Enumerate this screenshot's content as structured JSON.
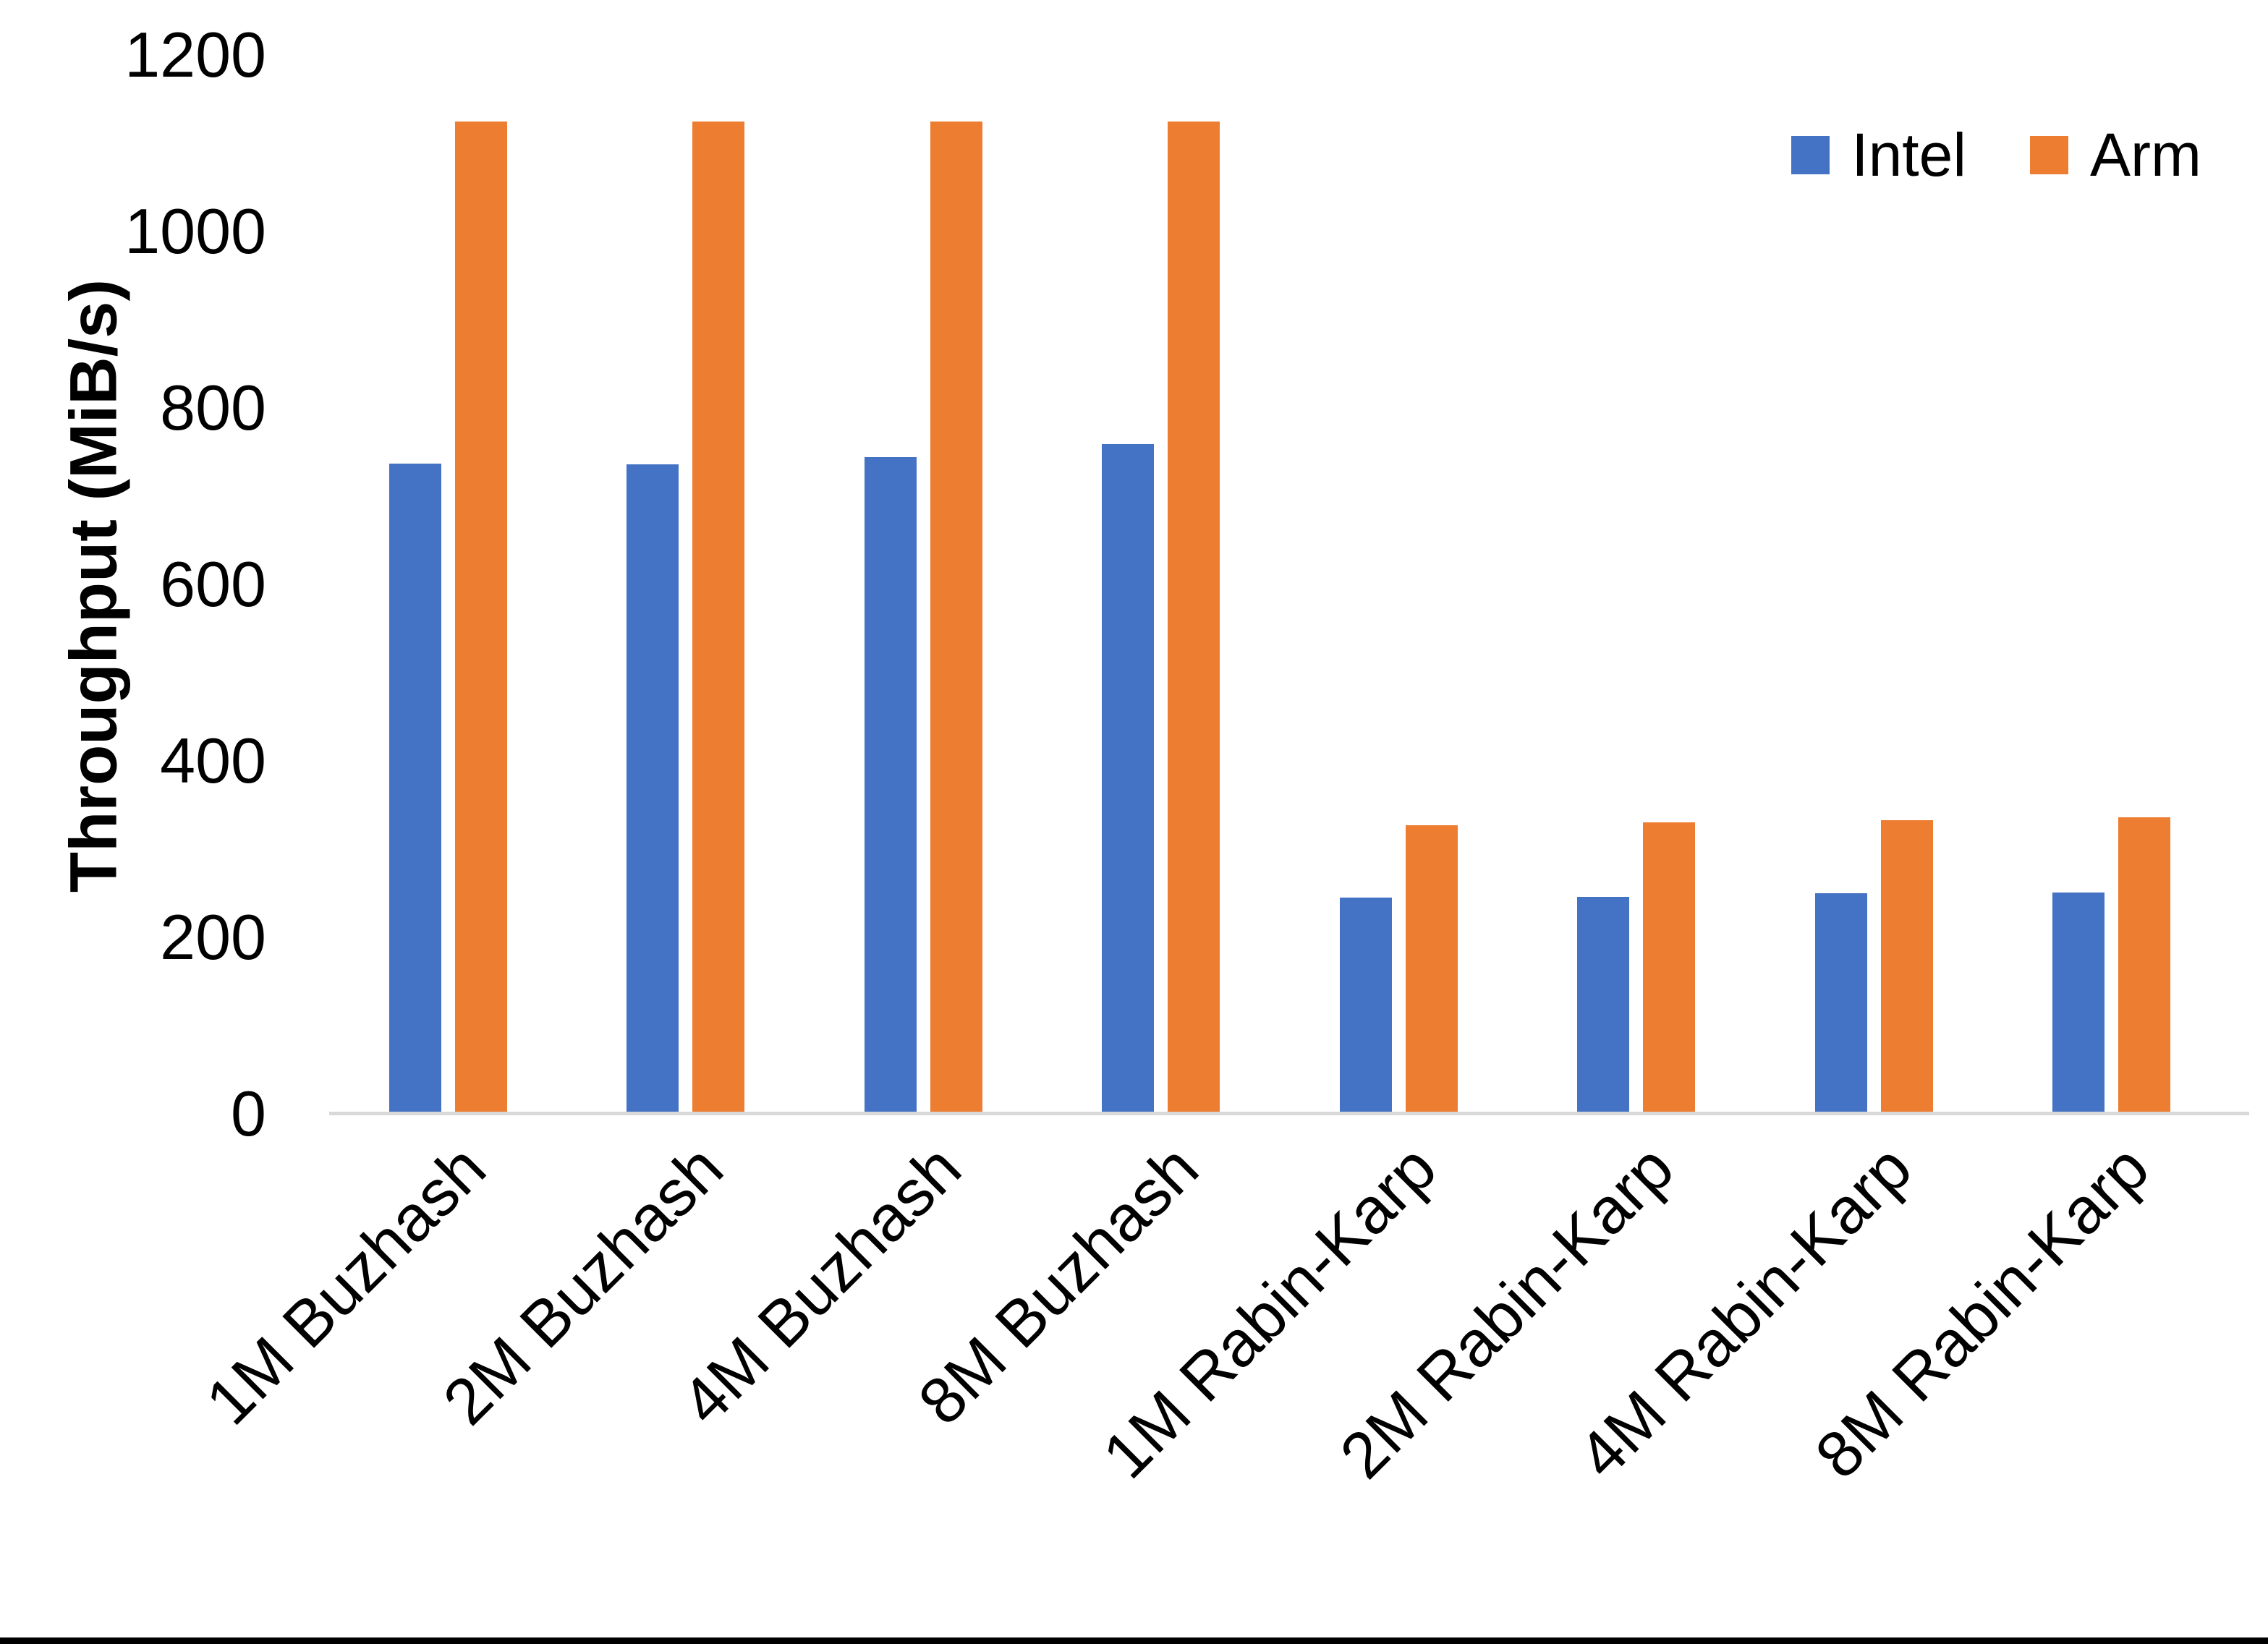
{
  "chart_data": {
    "type": "bar",
    "title": "",
    "ylabel": "Throughput (MiB/s)",
    "xlabel": "",
    "categories": [
      "1M Buzhash",
      "2M Buzhash",
      "4M Buzhash",
      "8M Buzhash",
      "1M Rabin-Karp",
      "2M Rabin-Karp",
      "4M Rabin-Karp",
      "8M Rabin-Karp"
    ],
    "series": [
      {
        "name": "Intel",
        "color": "#4472C4",
        "values": [
          737,
          736,
          744,
          759,
          245,
          246,
          250,
          251
        ]
      },
      {
        "name": "Arm",
        "color": "#ED7D31",
        "values": [
          1125,
          1125,
          1125,
          1125,
          327,
          330,
          333,
          336
        ]
      }
    ],
    "ylim": [
      0,
      1200
    ],
    "yticks": [
      0,
      200,
      400,
      600,
      800,
      1000,
      1200
    ],
    "grid": false,
    "legend_position": "top-right",
    "axis_line_color": "#d9d9d9",
    "text_color": "#000000",
    "background_color": "#ffffff"
  }
}
